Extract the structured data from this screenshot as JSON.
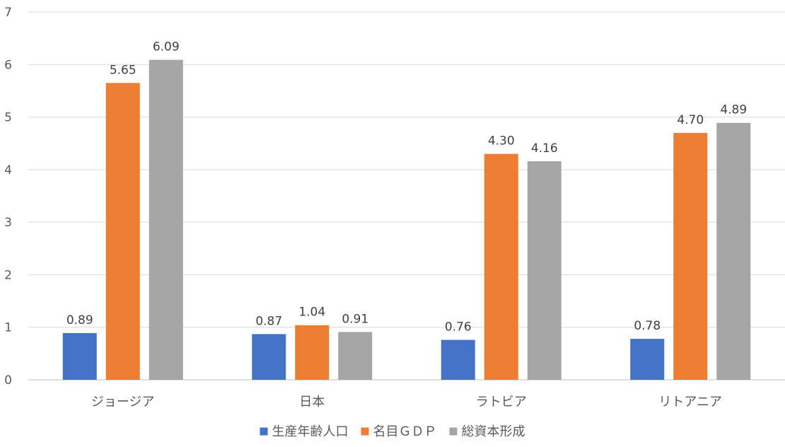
{
  "chart_data": {
    "type": "bar",
    "categories": [
      "ジョージア",
      "日本",
      "ラトビア",
      "リトアニア"
    ],
    "series": [
      {
        "name": "生産年齢人口",
        "color": "#4472c4",
        "values": [
          0.89,
          0.87,
          0.76,
          0.78
        ]
      },
      {
        "name": "名目ＧＤＰ",
        "color": "#ed7d31",
        "values": [
          5.65,
          1.04,
          4.3,
          4.7
        ]
      },
      {
        "name": "総資本形成",
        "color": "#a5a5a5",
        "values": [
          6.09,
          0.91,
          4.16,
          4.89
        ]
      }
    ],
    "ylim": [
      0,
      7
    ],
    "yticks": [
      0,
      1,
      2,
      3,
      4,
      5,
      6,
      7
    ],
    "grid": true,
    "legend_position": "bottom",
    "data_labels": true,
    "label_decimals": 2
  }
}
